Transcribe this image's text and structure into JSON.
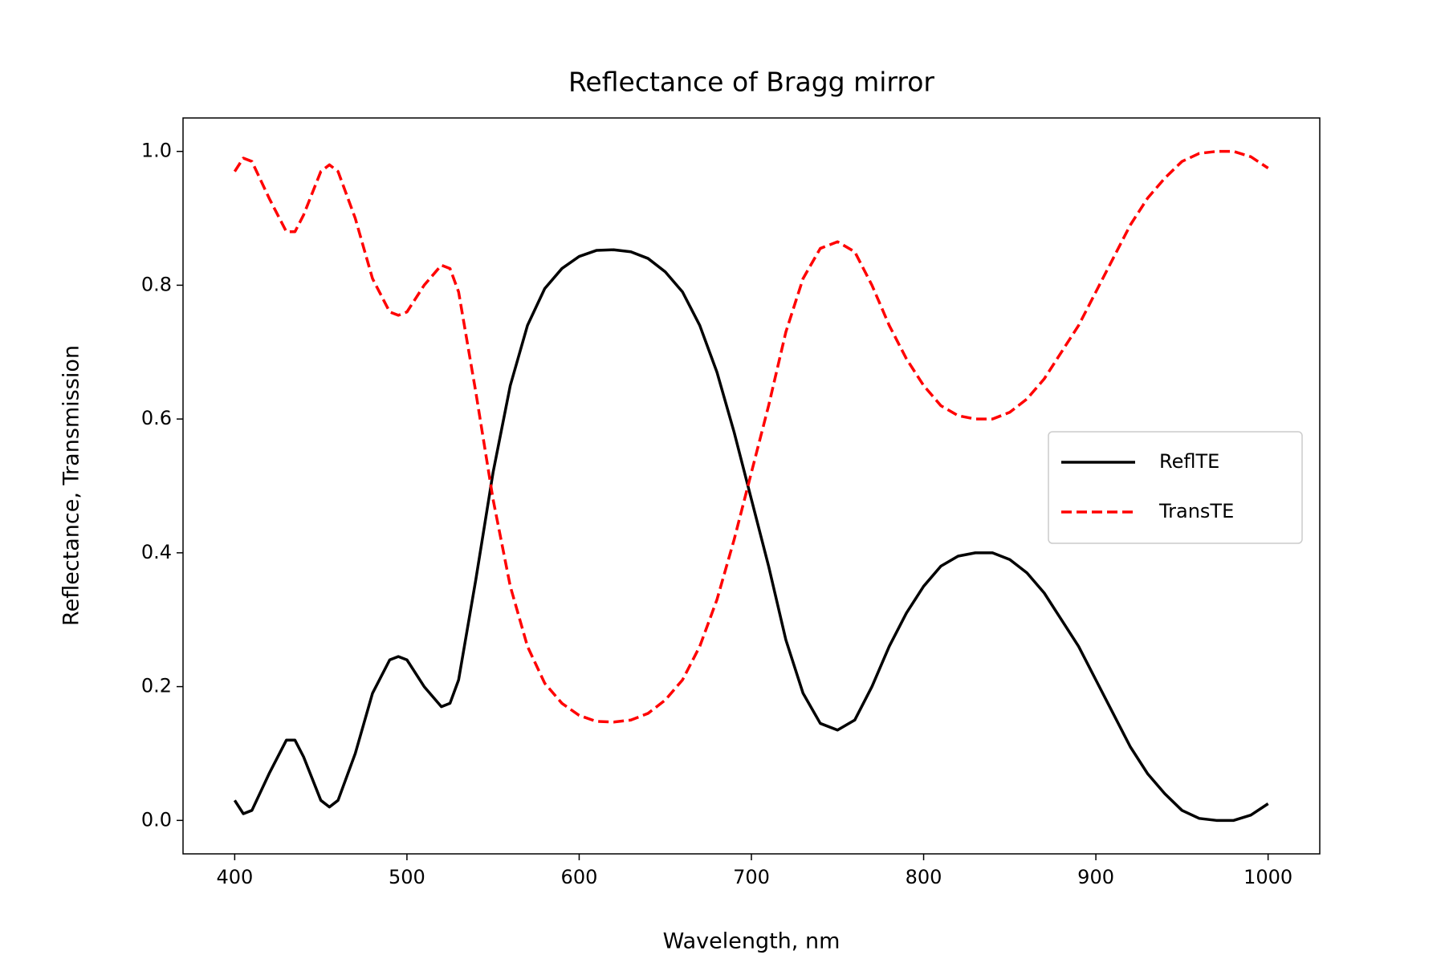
{
  "chart_data": {
    "type": "line",
    "title": "Reflectance of Bragg mirror",
    "x_label": "Wavelength, nm",
    "y_label": "Reflectance, Transmission",
    "x": [
      400,
      405,
      410,
      420,
      430,
      435,
      440,
      450,
      455,
      460,
      470,
      480,
      490,
      495,
      500,
      510,
      520,
      525,
      530,
      540,
      550,
      560,
      570,
      580,
      590,
      600,
      610,
      620,
      630,
      640,
      650,
      660,
      670,
      680,
      690,
      700,
      710,
      720,
      730,
      740,
      750,
      760,
      770,
      780,
      790,
      800,
      810,
      820,
      830,
      840,
      850,
      860,
      870,
      880,
      890,
      900,
      910,
      920,
      930,
      940,
      950,
      960,
      970,
      980,
      990,
      1000
    ],
    "series": [
      {
        "name": "ReflTE",
        "color": "#000000",
        "linestyle": "solid",
        "values": [
          0.03,
          0.01,
          0.015,
          0.07,
          0.12,
          0.12,
          0.095,
          0.03,
          0.02,
          0.03,
          0.1,
          0.19,
          0.24,
          0.245,
          0.24,
          0.2,
          0.17,
          0.175,
          0.21,
          0.36,
          0.52,
          0.65,
          0.74,
          0.795,
          0.825,
          0.843,
          0.852,
          0.853,
          0.85,
          0.84,
          0.82,
          0.79,
          0.74,
          0.67,
          0.58,
          0.48,
          0.38,
          0.27,
          0.19,
          0.145,
          0.135,
          0.15,
          0.2,
          0.26,
          0.31,
          0.35,
          0.38,
          0.395,
          0.4,
          0.4,
          0.39,
          0.37,
          0.34,
          0.3,
          0.26,
          0.21,
          0.16,
          0.11,
          0.07,
          0.04,
          0.015,
          0.003,
          0.0,
          0.0,
          0.008,
          0.025
        ]
      },
      {
        "name": "TransTE",
        "color": "#ff0000",
        "linestyle": "dashed",
        "values": [
          0.97,
          0.99,
          0.985,
          0.93,
          0.88,
          0.88,
          0.905,
          0.97,
          0.98,
          0.97,
          0.9,
          0.81,
          0.76,
          0.755,
          0.76,
          0.8,
          0.83,
          0.825,
          0.79,
          0.64,
          0.48,
          0.35,
          0.26,
          0.205,
          0.175,
          0.157,
          0.148,
          0.147,
          0.15,
          0.16,
          0.18,
          0.21,
          0.26,
          0.33,
          0.42,
          0.52,
          0.62,
          0.73,
          0.81,
          0.855,
          0.865,
          0.85,
          0.8,
          0.74,
          0.69,
          0.65,
          0.62,
          0.605,
          0.6,
          0.6,
          0.61,
          0.63,
          0.66,
          0.7,
          0.74,
          0.79,
          0.84,
          0.89,
          0.93,
          0.96,
          0.985,
          0.997,
          1.0,
          1.0,
          0.992,
          0.975
        ]
      }
    ],
    "xlim": [
      370,
      1030
    ],
    "xticks": [
      400,
      500,
      600,
      700,
      800,
      900,
      1000
    ],
    "ylim": [
      -0.05,
      1.05
    ],
    "yticks": [
      {
        "value": 0,
        "label": "0.0"
      },
      0.2,
      0.4,
      0.6,
      0.8,
      {
        "value": 1,
        "label": "1.0"
      }
    ],
    "legend": "center right",
    "grid": false
  }
}
